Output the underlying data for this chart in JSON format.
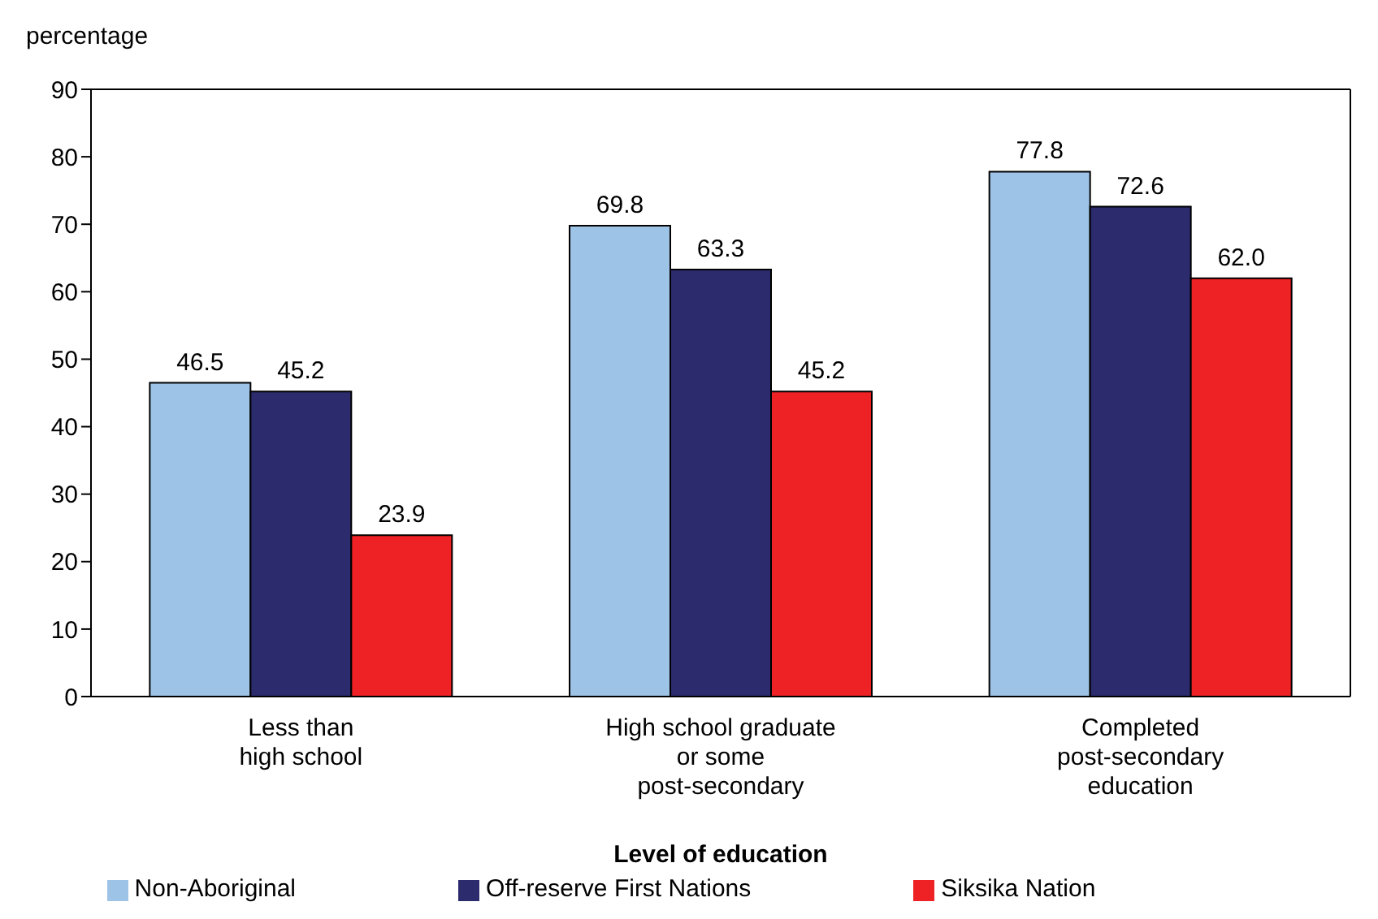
{
  "chart_data": {
    "type": "bar",
    "ylabel": "percentage",
    "xlabel": "Level of education",
    "categories": [
      "Less than\nhigh school",
      "High school graduate\nor some\npost-secondary",
      "Completed\npost-secondary\neducation"
    ],
    "series": [
      {
        "name": "Non-Aboriginal",
        "color": "#9dc3e6",
        "values": [
          46.5,
          69.8,
          77.8
        ],
        "value_labels": [
          "46.5",
          "69.8",
          "77.8"
        ]
      },
      {
        "name": "Off-reserve First Nations",
        "color": "#2b2b6e",
        "values": [
          45.2,
          63.3,
          72.6
        ],
        "value_labels": [
          "45.2",
          "63.3",
          "72.6"
        ]
      },
      {
        "name": "Siksika Nation",
        "color": "#ee2124",
        "values": [
          23.9,
          45.2,
          62.0
        ],
        "value_labels": [
          "23.9",
          "45.2",
          "62.0"
        ]
      }
    ],
    "ylim": [
      0,
      90
    ],
    "yticks": [
      0,
      10,
      20,
      30,
      40,
      50,
      60,
      70,
      80,
      90
    ],
    "grid": false,
    "legend": "bottom"
  }
}
